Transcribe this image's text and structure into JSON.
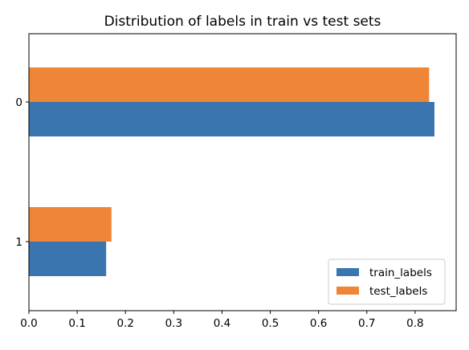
{
  "chart_data": {
    "type": "bar",
    "orientation": "horizontal",
    "title": "Distribution of labels in train vs test sets",
    "xlabel": "",
    "ylabel": "",
    "categories": [
      "0",
      "1"
    ],
    "series": [
      {
        "name": "train_labels",
        "values": [
          0.84,
          0.16
        ],
        "color": "#3a75b0"
      },
      {
        "name": "test_labels",
        "values": [
          0.829,
          0.171
        ],
        "color": "#ef8536"
      }
    ],
    "xlim": [
      0,
      0.885
    ],
    "xticks": [
      0.0,
      0.1,
      0.2,
      0.3,
      0.4,
      0.5,
      0.6,
      0.7,
      0.8
    ],
    "xtick_labels": [
      "0.0",
      "0.1",
      "0.2",
      "0.3",
      "0.4",
      "0.5",
      "0.6",
      "0.7",
      "0.8"
    ],
    "grid": false,
    "legend": "lower-right"
  }
}
